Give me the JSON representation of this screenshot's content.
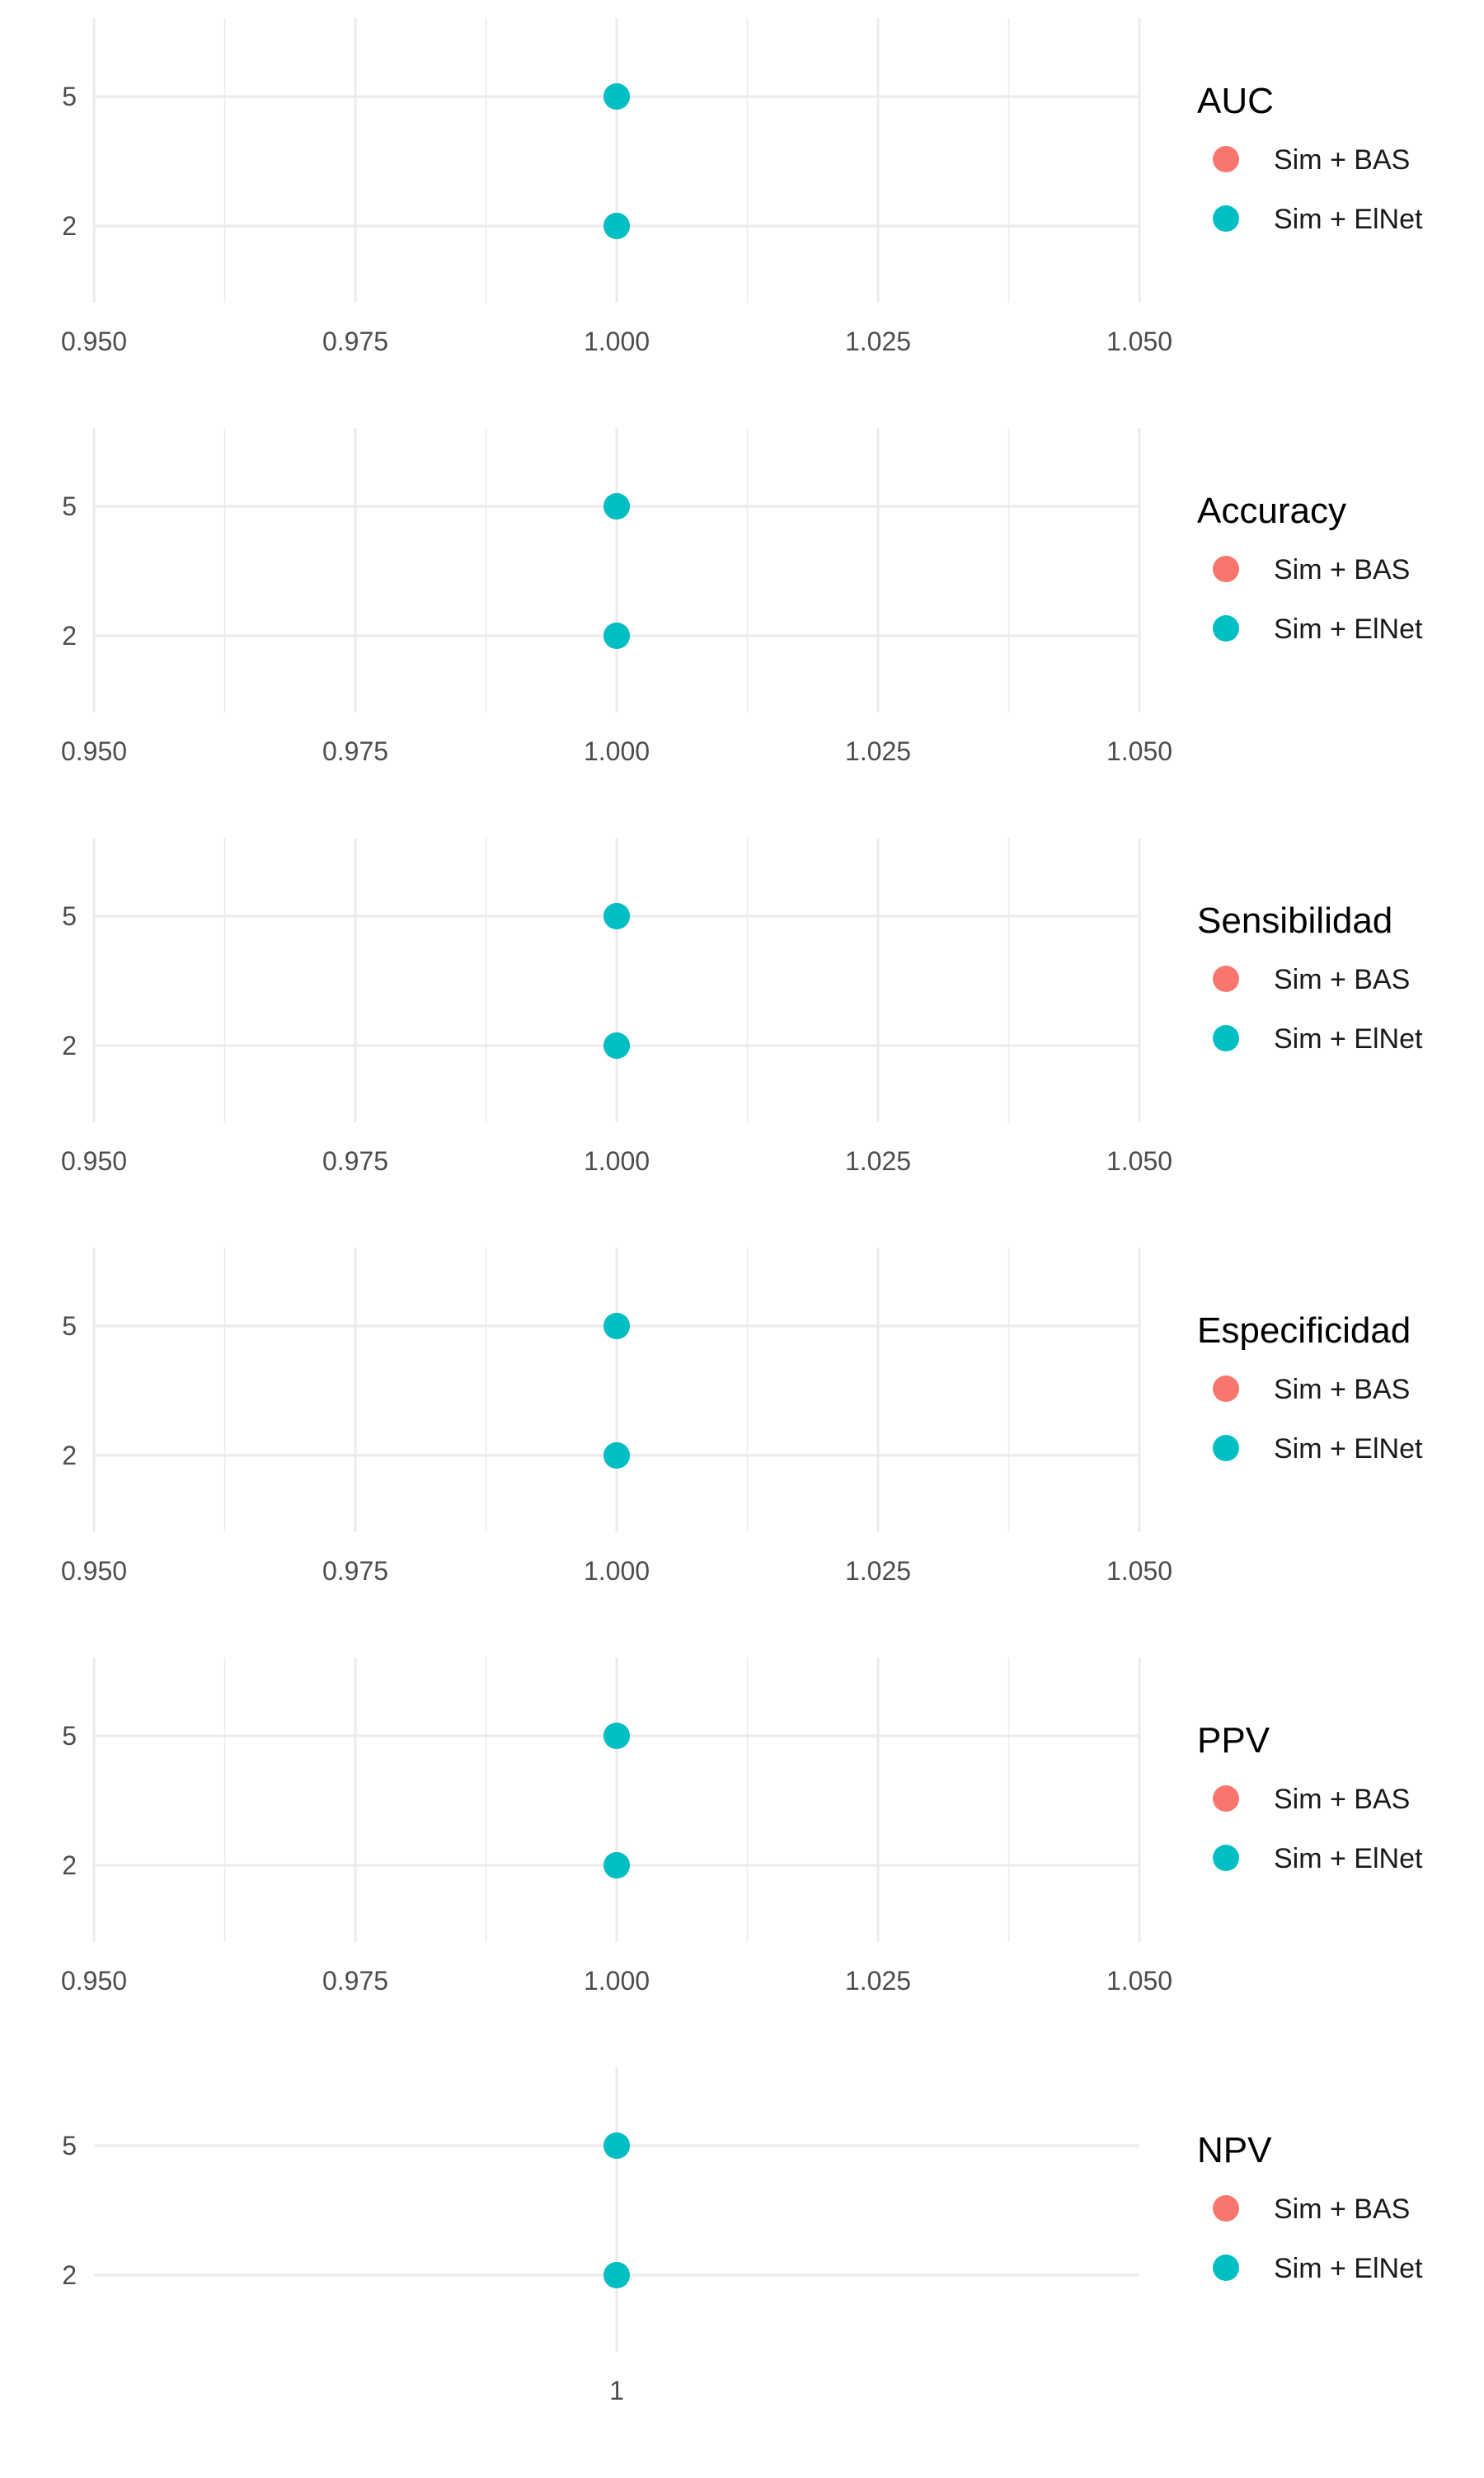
{
  "colors": {
    "sim_bas": "#F8766D",
    "sim_elnet": "#00BFC4",
    "grid": "#EBEBEB",
    "tick_text": "#4D4D4D"
  },
  "chart_data": [
    {
      "type": "scatter",
      "legend_title": "AUC",
      "legend_position": "right",
      "grid": true,
      "xlim": [
        0.95,
        1.05
      ],
      "x_ticks": [
        "0.950",
        "0.975",
        "1.000",
        "1.025",
        "1.050"
      ],
      "y_categories": [
        "2",
        "5"
      ],
      "series": [
        {
          "name": "Sim + BAS",
          "points": [
            {
              "x": 1.0,
              "y": "5"
            },
            {
              "x": 1.0,
              "y": "2"
            }
          ]
        },
        {
          "name": "Sim + ElNet",
          "points": [
            {
              "x": 1.0,
              "y": "5"
            },
            {
              "x": 1.0,
              "y": "2"
            }
          ]
        }
      ]
    },
    {
      "type": "scatter",
      "legend_title": "Accuracy",
      "legend_position": "right",
      "grid": true,
      "xlim": [
        0.95,
        1.05
      ],
      "x_ticks": [
        "0.950",
        "0.975",
        "1.000",
        "1.025",
        "1.050"
      ],
      "y_categories": [
        "2",
        "5"
      ],
      "series": [
        {
          "name": "Sim + BAS",
          "points": [
            {
              "x": 1.0,
              "y": "5"
            },
            {
              "x": 1.0,
              "y": "2"
            }
          ]
        },
        {
          "name": "Sim + ElNet",
          "points": [
            {
              "x": 1.0,
              "y": "5"
            },
            {
              "x": 1.0,
              "y": "2"
            }
          ]
        }
      ]
    },
    {
      "type": "scatter",
      "legend_title": "Sensibilidad",
      "legend_position": "right",
      "grid": true,
      "xlim": [
        0.95,
        1.05
      ],
      "x_ticks": [
        "0.950",
        "0.975",
        "1.000",
        "1.025",
        "1.050"
      ],
      "y_categories": [
        "2",
        "5"
      ],
      "series": [
        {
          "name": "Sim + BAS",
          "points": [
            {
              "x": 1.0,
              "y": "5"
            },
            {
              "x": 1.0,
              "y": "2"
            }
          ]
        },
        {
          "name": "Sim + ElNet",
          "points": [
            {
              "x": 1.0,
              "y": "5"
            },
            {
              "x": 1.0,
              "y": "2"
            }
          ]
        }
      ]
    },
    {
      "type": "scatter",
      "legend_title": "Especificidad",
      "legend_position": "right",
      "grid": true,
      "xlim": [
        0.95,
        1.05
      ],
      "x_ticks": [
        "0.950",
        "0.975",
        "1.000",
        "1.025",
        "1.050"
      ],
      "y_categories": [
        "2",
        "5"
      ],
      "series": [
        {
          "name": "Sim + BAS",
          "points": [
            {
              "x": 1.0,
              "y": "5"
            },
            {
              "x": 1.0,
              "y": "2"
            }
          ]
        },
        {
          "name": "Sim + ElNet",
          "points": [
            {
              "x": 1.0,
              "y": "5"
            },
            {
              "x": 1.0,
              "y": "2"
            }
          ]
        }
      ]
    },
    {
      "type": "scatter",
      "legend_title": "PPV",
      "legend_position": "right",
      "grid": true,
      "xlim": [
        0.95,
        1.05
      ],
      "x_ticks": [
        "0.950",
        "0.975",
        "1.000",
        "1.025",
        "1.050"
      ],
      "y_categories": [
        "2",
        "5"
      ],
      "series": [
        {
          "name": "Sim + BAS",
          "points": [
            {
              "x": 1.0,
              "y": "5"
            },
            {
              "x": 1.0,
              "y": "2"
            }
          ]
        },
        {
          "name": "Sim + ElNet",
          "points": [
            {
              "x": 1.0,
              "y": "5"
            },
            {
              "x": 1.0,
              "y": "2"
            }
          ]
        }
      ]
    },
    {
      "type": "scatter",
      "legend_title": "NPV",
      "legend_position": "right",
      "grid": true,
      "x_ticks": [
        "1"
      ],
      "y_categories": [
        "2",
        "5"
      ],
      "series": [
        {
          "name": "Sim + BAS",
          "points": [
            {
              "x": 1,
              "y": "5"
            },
            {
              "x": 1,
              "y": "2"
            }
          ]
        },
        {
          "name": "Sim + ElNet",
          "points": [
            {
              "x": 1,
              "y": "5"
            },
            {
              "x": 1,
              "y": "2"
            }
          ]
        }
      ]
    }
  ]
}
